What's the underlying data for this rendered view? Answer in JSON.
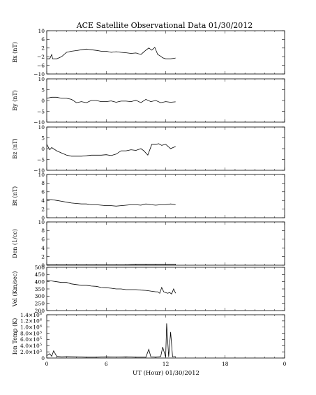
{
  "title": "ACE Satellite Observational Data   01/30/2012",
  "chart_data": {
    "type": "line",
    "title": "ACE Satellite Observational Data   01/30/2012",
    "xlabel": "UT (Hour)  01/30/2012",
    "xlim": [
      0,
      24
    ],
    "x_ticks": [
      "0",
      "6",
      "12",
      "18",
      "0"
    ],
    "grid": false,
    "panels": [
      {
        "ylabel": "Bx (nT)",
        "ylim": [
          -10,
          10
        ],
        "y_ticks": [
          "10",
          "6",
          "2",
          "−2",
          "−6",
          "−10"
        ],
        "line_color": "#000000",
        "x": [
          0,
          0.3,
          0.5,
          0.6,
          0.8,
          1.0,
          1.5,
          2.0,
          2.5,
          3.0,
          3.5,
          4.0,
          4.5,
          5.0,
          5.5,
          6.0,
          6.5,
          7.0,
          7.5,
          8.0,
          8.5,
          9.0,
          9.5,
          10.0,
          10.3,
          10.6,
          10.9,
          11.2,
          11.4,
          11.7,
          12.0,
          12.5,
          13.0
        ],
        "y": [
          -3,
          -3,
          -1,
          -3,
          -3,
          -3,
          -2,
          0,
          0.5,
          0.8,
          1.2,
          1.5,
          1.2,
          0.9,
          0.5,
          0.5,
          0,
          0.3,
          0,
          -0.2,
          -0.5,
          -0.3,
          -1,
          1,
          2,
          1,
          2.3,
          -1,
          -1.5,
          -2.5,
          -3,
          -3,
          -2.6
        ]
      },
      {
        "ylabel": "By (nT)",
        "ylim": [
          -10,
          10
        ],
        "y_ticks": [
          "10",
          "5",
          "0",
          "−5",
          "−10"
        ],
        "line_color": "#000000",
        "x": [
          0,
          0.5,
          1.0,
          1.5,
          2.0,
          2.5,
          3.0,
          3.5,
          4.0,
          4.5,
          5.0,
          5.5,
          6.0,
          6.5,
          7.0,
          7.5,
          8.0,
          8.5,
          9.0,
          9.5,
          10.0,
          10.5,
          11.0,
          11.5,
          12.0,
          12.5,
          13.0
        ],
        "y": [
          1,
          1.5,
          1.5,
          1,
          1,
          0.5,
          -1,
          -0.5,
          -1,
          0,
          0,
          -0.5,
          -0.5,
          -0.2,
          -0.8,
          -0.3,
          -0.3,
          -0.5,
          0.1,
          -1,
          0.5,
          -0.5,
          0,
          -1,
          -0.5,
          -0.8,
          -0.6
        ]
      },
      {
        "ylabel": "Bz (nT)",
        "ylim": [
          -10,
          10
        ],
        "y_ticks": [
          "10",
          "5",
          "0",
          "−5",
          "−10"
        ],
        "line_color": "#000000",
        "x": [
          0,
          0.3,
          0.5,
          1.0,
          1.5,
          2.0,
          2.5,
          3.0,
          3.5,
          4.0,
          4.5,
          5.0,
          5.5,
          6.0,
          6.5,
          7.0,
          7.5,
          8.0,
          8.5,
          9.0,
          9.5,
          9.8,
          10.2,
          10.6,
          11.0,
          11.3,
          11.6,
          12.0,
          12.5,
          13.0
        ],
        "y": [
          2,
          -0.5,
          0.5,
          -1,
          -2,
          -3,
          -3.5,
          -3.5,
          -3.5,
          -3.3,
          -3,
          -3,
          -3,
          -2.8,
          -3.2,
          -2.5,
          -1,
          -1,
          -0.5,
          -0.8,
          0,
          -1,
          -3,
          2,
          2,
          2.3,
          1.5,
          2,
          0,
          1
        ]
      },
      {
        "ylabel": "Bt (nT)",
        "ylim": [
          0,
          10
        ],
        "y_ticks": [
          "10",
          "8",
          "6",
          "4",
          "2",
          "0"
        ],
        "line_color": "#000000",
        "x": [
          0,
          0.5,
          1.0,
          1.5,
          2.0,
          2.5,
          3.0,
          3.5,
          4.0,
          4.5,
          5.0,
          5.5,
          6.0,
          6.5,
          7.0,
          7.5,
          8.0,
          8.5,
          9.0,
          9.5,
          10.0,
          10.5,
          11.0,
          11.5,
          12.0,
          12.5,
          13.0
        ],
        "y": [
          4.2,
          4.2,
          4.0,
          3.8,
          3.6,
          3.4,
          3.3,
          3.2,
          3.2,
          3.0,
          3.0,
          2.9,
          2.8,
          2.8,
          2.7,
          2.8,
          2.9,
          3.0,
          3.0,
          2.9,
          3.2,
          3.0,
          2.9,
          3.0,
          3.0,
          3.2,
          3.0
        ]
      },
      {
        "ylabel": "Den (1/cc)",
        "ylim": [
          0,
          10
        ],
        "y_ticks": [
          "10",
          "8",
          "6",
          "4",
          "2",
          "0"
        ],
        "line_color": "#000000",
        "x": [
          0,
          1,
          2,
          3,
          4,
          5,
          6,
          7,
          8,
          9,
          10,
          11,
          12,
          13
        ],
        "y": [
          0.1,
          0.1,
          0.1,
          0.1,
          0.1,
          0.1,
          0.1,
          0.1,
          0.1,
          0.2,
          0.2,
          0.2,
          0.2,
          0.2
        ]
      },
      {
        "ylabel": "Vel (Km/sec)",
        "ylim": [
          200,
          500
        ],
        "y_ticks": [
          "500",
          "450",
          "400",
          "350",
          "300",
          "250",
          "200"
        ],
        "line_color": "#000000",
        "x": [
          0,
          0.5,
          1.0,
          1.5,
          2.0,
          2.5,
          3.0,
          3.5,
          4.0,
          4.5,
          5.0,
          5.5,
          6.0,
          6.5,
          7.0,
          7.5,
          8.0,
          8.5,
          9.0,
          9.5,
          10.0,
          10.5,
          11.0,
          11.2,
          11.4,
          11.6,
          11.8,
          12.0,
          12.2,
          12.4,
          12.6,
          12.8,
          13.0
        ],
        "y": [
          410,
          405,
          400,
          395,
          395,
          385,
          380,
          375,
          375,
          370,
          368,
          360,
          358,
          355,
          350,
          350,
          345,
          345,
          345,
          342,
          340,
          335,
          330,
          330,
          320,
          360,
          330,
          325,
          320,
          325,
          315,
          350,
          320
        ]
      },
      {
        "ylabel": "Ion Temp (K)",
        "ylim": [
          0,
          1500000
        ],
        "y_ticks": [
          "1.4×10",
          "1.2×10",
          "1.0×10",
          "8.0×10",
          "6.0×10",
          "4.0×10",
          "2.0×10",
          "0"
        ],
        "y_tick_exponents": [
          "6",
          "6",
          "6",
          "5",
          "5",
          "5",
          "5",
          ""
        ],
        "line_color": "#000000",
        "x": [
          0,
          0.3,
          0.5,
          0.7,
          1.0,
          1.5,
          2.0,
          3.0,
          4.0,
          5.0,
          6.0,
          7.0,
          8.0,
          9.0,
          10.0,
          10.3,
          10.5,
          11.0,
          11.5,
          11.7,
          12.0,
          12.1,
          12.3,
          12.5,
          12.7,
          13.0
        ],
        "y": [
          80000,
          150000,
          60000,
          250000,
          60000,
          40000,
          50000,
          40000,
          30000,
          30000,
          40000,
          35000,
          40000,
          30000,
          30000,
          300000,
          40000,
          30000,
          50000,
          380000,
          30000,
          1200000,
          40000,
          900000,
          40000,
          50000
        ]
      }
    ]
  }
}
